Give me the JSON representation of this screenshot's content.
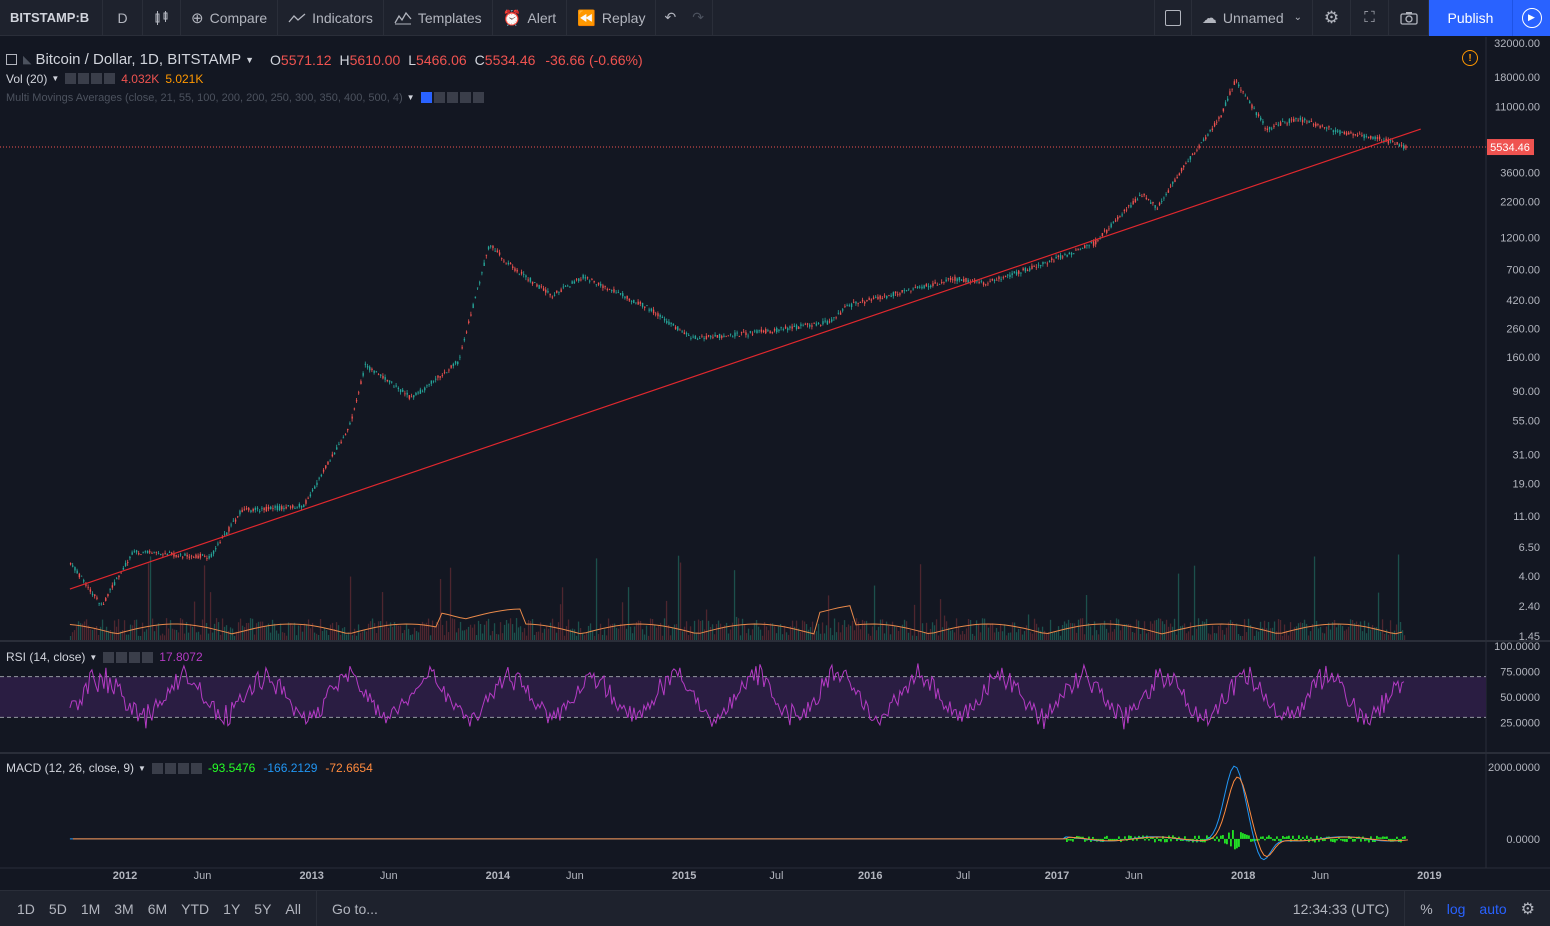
{
  "toolbar": {
    "symbol": "BITSTAMP:B",
    "interval": "D",
    "compare": "Compare",
    "indicators": "Indicators",
    "templates": "Templates",
    "alert": "Alert",
    "replay": "Replay",
    "layout_name": "Unnamed",
    "publish": "Publish"
  },
  "legend": {
    "title": "Bitcoin / Dollar, 1D, BITSTAMP",
    "o_label": "O",
    "o_value": "5571.12",
    "h_label": "H",
    "h_value": "5610.00",
    "l_label": "L",
    "l_value": "5466.06",
    "c_label": "C",
    "c_value": "5534.46",
    "change": "-36.66 (-0.66%)",
    "vol_label": "Vol (20)",
    "vol_value1": "4.032K",
    "vol_value2": "5.021K",
    "ma_label": "Multi Movings Averages (close, 21, 55, 100, 200, 200, 250, 300, 350, 400, 500, 4)",
    "rsi_label": "RSI (14, close)",
    "rsi_value": "17.8072",
    "macd_label": "MACD (12, 26, close, 9)",
    "macd_v1": "-93.5476",
    "macd_v2": "-166.2129",
    "macd_v3": "-72.6654"
  },
  "price_axis": [
    "32000.00",
    "18000.00",
    "11000.00",
    "3600.00",
    "2200.00",
    "1200.00",
    "700.00",
    "420.00",
    "260.00",
    "160.00",
    "90.00",
    "55.00",
    "31.00",
    "19.00",
    "11.00",
    "6.50",
    "4.00",
    "2.40",
    "1.45"
  ],
  "price_values": [
    32000,
    18000,
    11000,
    3600,
    2200,
    1200,
    700,
    420,
    260,
    160,
    90,
    55,
    31,
    19,
    11,
    6.5,
    4,
    2.4,
    1.45
  ],
  "current_price": "5534.46",
  "rsi_axis": [
    "100.0000",
    "75.0000",
    "50.0000",
    "25.0000"
  ],
  "macd_axis": [
    "2000.0000",
    "0.0000"
  ],
  "time_axis": [
    "2012",
    "Jun",
    "2013",
    "Jun",
    "2014",
    "Jun",
    "2015",
    "Jul",
    "2016",
    "Jul",
    "2017",
    "Jun",
    "2018",
    "Jun",
    "2019"
  ],
  "bottombar": {
    "ranges": [
      "1D",
      "5D",
      "1M",
      "3M",
      "6M",
      "YTD",
      "1Y",
      "5Y",
      "All"
    ],
    "goto": "Go to...",
    "clock": "12:34:33 (UTC)",
    "percent": "%",
    "log": "log",
    "auto": "auto"
  },
  "colors": {
    "up": "#26a69a",
    "down": "#ef5350",
    "trendline": "#e0282e",
    "rsi": "#b43bc4",
    "rsi_band": "#2a1d42",
    "volume_ma": "#e8894a",
    "macd_hist": "#26ff26",
    "macd_line": "#2196f3",
    "signal_line": "#ff8a3d"
  },
  "chart_data": {
    "type": "line",
    "scale": "log",
    "ylim": [
      1.45,
      32000
    ],
    "series": [
      {
        "x": [
          "2011-09",
          "2011-11",
          "2012-01",
          "2012-06",
          "2012-08",
          "2012-12",
          "2013-03",
          "2013-04",
          "2013-07",
          "2013-10",
          "2013-12",
          "2014-01",
          "2014-04",
          "2014-06",
          "2014-10",
          "2015-01",
          "2015-05",
          "2015-10",
          "2015-11",
          "2016-06",
          "2016-08",
          "2016-12",
          "2017-03",
          "2017-06",
          "2017-07",
          "2017-09",
          "2017-11",
          "2017-12",
          "2018-02",
          "2018-04",
          "2018-07",
          "2018-09",
          "2018-11"
        ],
        "values": [
          5,
          2.4,
          6,
          5.5,
          12,
          13,
          50,
          140,
          80,
          150,
          1100,
          800,
          450,
          620,
          380,
          220,
          240,
          290,
          380,
          600,
          560,
          800,
          1100,
          2500,
          2000,
          4500,
          9000,
          17000,
          7500,
          9000,
          7000,
          6500,
          5534
        ]
      }
    ],
    "trendline": {
      "x": [
        "2011-09",
        "2018-12"
      ],
      "values": [
        3.2,
        7500
      ]
    },
    "rsi": {
      "ylim": [
        0,
        100
      ],
      "upper": 70,
      "lower": 30,
      "last": 17.8072
    },
    "macd": {
      "ylim": [
        -700,
        2200
      ],
      "peak": 2000,
      "last": -93.5476
    }
  }
}
